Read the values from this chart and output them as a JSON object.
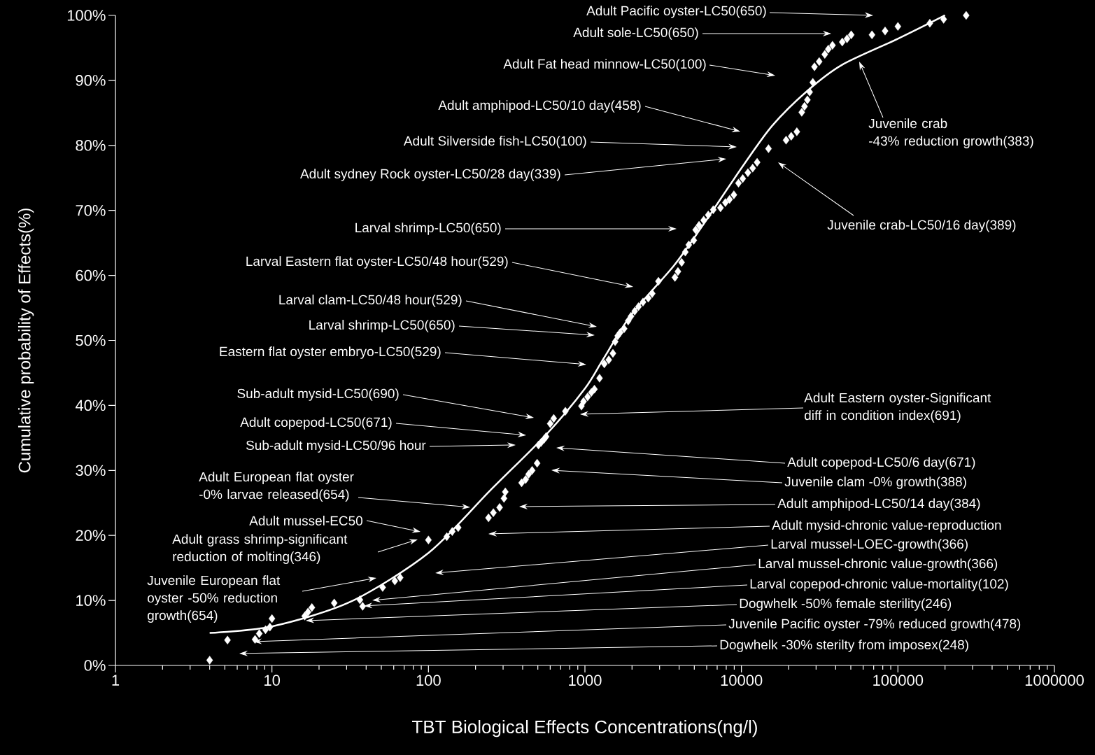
{
  "chart_data": {
    "type": "scatter",
    "xlabel": "TBT Biological Effects Concentrations(ng/l)",
    "ylabel": "Cumulative probability of Effects(%)",
    "log": "x",
    "grid": false,
    "xlim": [
      1,
      1000000
    ],
    "ylim": [
      0,
      100
    ],
    "xticks": [
      1,
      10,
      100,
      1000,
      10000,
      100000,
      1000000
    ],
    "yticks": [
      {
        "value": 0,
        "label": "0%"
      },
      {
        "value": 10,
        "label": "10%"
      },
      {
        "value": 20,
        "label": "20%"
      },
      {
        "value": 30,
        "label": "30%"
      },
      {
        "value": 40,
        "label": "40%"
      },
      {
        "value": 50,
        "label": "50%"
      },
      {
        "value": 60,
        "label": "60%"
      },
      {
        "value": 70,
        "label": "70%"
      },
      {
        "value": 80,
        "label": "80%"
      },
      {
        "value": 90,
        "label": "90%"
      },
      {
        "value": 100,
        "label": "100%"
      }
    ],
    "series": [
      {
        "type": "scatter",
        "color": "#ffffff",
        "marker": "diamond",
        "x": [
          4,
          5.2,
          7.8,
          8.3,
          9.1,
          9.7,
          10,
          16.2,
          17,
          18,
          25,
          36.5,
          38,
          51,
          61,
          66,
          100,
          131,
          142,
          155,
          242,
          260,
          285,
          304,
          310,
          394,
          418,
          437,
          460,
          495,
          505,
          525,
          548,
          565,
          600,
          632,
          750,
          950,
          980,
          1040,
          1100,
          1150,
          1240,
          1330,
          1420,
          1510,
          1560,
          1620,
          1680,
          1780,
          1890,
          1970,
          2080,
          2200,
          2350,
          2540,
          2690,
          2950,
          3760,
          3930,
          4150,
          4380,
          4610,
          4960,
          5100,
          5360,
          5740,
          6140,
          6610,
          7350,
          7900,
          8400,
          8950,
          9580,
          10200,
          11000,
          11800,
          12600,
          14900,
          19300,
          20800,
          22600,
          24300,
          25300,
          26400,
          27300,
          28600,
          29300,
          31400,
          34100,
          35900,
          38200,
          44100,
          47300,
          50300,
          68300,
          82800,
          100000,
          160000,
          196000,
          273000
        ],
        "values": [
          0.8,
          3.9,
          4,
          4.9,
          5.5,
          5.9,
          7.2,
          7.6,
          8.2,
          8.9,
          9.6,
          10.1,
          9.1,
          12,
          13,
          13.5,
          19.3,
          19.8,
          20.6,
          21.2,
          22.7,
          23.5,
          24.3,
          25.7,
          26.7,
          28.1,
          28.6,
          29.4,
          30,
          31.1,
          33.9,
          34.3,
          34.8,
          35.2,
          37.2,
          38,
          39.1,
          39.9,
          40.6,
          41.3,
          42,
          42.5,
          44.2,
          46.4,
          47,
          48,
          49.8,
          50.7,
          51.2,
          51.8,
          53,
          53.7,
          54.5,
          55.2,
          55.9,
          56.5,
          57.2,
          59.1,
          59.7,
          60.6,
          62,
          63.6,
          64.7,
          65.4,
          67,
          67.7,
          68.5,
          69.3,
          70.1,
          70.4,
          71.2,
          71.7,
          72.4,
          74.2,
          74.9,
          75.8,
          76.5,
          77.4,
          79.5,
          80.8,
          81.4,
          82.1,
          85.1,
          86,
          87,
          88.2,
          89.7,
          92.1,
          92.9,
          94,
          94.8,
          95.4,
          95.9,
          96.4,
          97,
          97,
          97.6,
          98.3,
          98.8,
          99.4,
          100
        ]
      },
      {
        "type": "line",
        "color": "#ffffff",
        "marker": "none",
        "x": [
          4,
          10,
          31.8,
          100,
          250,
          570,
          1000,
          1300,
          1970,
          3700,
          5550,
          10000,
          15700,
          26400,
          44000,
          100000,
          200000
        ],
        "values": [
          5,
          6,
          9.8,
          17.3,
          27,
          35.6,
          42.6,
          47,
          53.9,
          61.5,
          67.4,
          76.5,
          83,
          88.4,
          92.4,
          96.4,
          100
        ]
      }
    ],
    "annotations": [
      "Adult Pacific oyster-LC50(650)",
      "Adult sole-LC50(650)",
      "Adult Fat head minnow-LC50(100)",
      "Adult amphipod-LC50/10 day(458)",
      "Adult Silverside fish-LC50(100)",
      "Adult sydney Rock oyster-LC50/28 day(339)",
      "Larval shrimp-LC50(650)",
      "Larval Eastern flat oyster-LC50/48 hour(529)",
      "Larval clam-LC50/48 hour(529)",
      "Larval shrimp-LC50(650)",
      "Eastern flat oyster embryo-LC50(529)",
      "Sub-adult mysid-LC50(690)",
      "Adult copepod-LC50(671)",
      "Sub-adult mysid-LC50/96 hour",
      "Adult European flat oyster\n-0% larvae released(654)",
      "Adult mussel-EC50",
      "Adult grass shrimp-significant\nreduction of molting(346)",
      "Juvenile European flat\noyster -50% reduction\ngrowth(654)",
      "Juvenile crab\n-43% reduction growth(383)",
      "Juvenile crab-LC50/16 day(389)",
      "Adult Eastern oyster-Significant\ndiff in condition index(691)",
      "Adult copepod-LC50/6 day(671)",
      "Juvenile clam -0% growth(388)",
      "Adult amphipod-LC50/14 day(384)",
      "Adult mysid-chronic value-reproduction",
      "Larval mussel-LOEC-growth(366)",
      "Larval mussel-chronic value-growth(366)",
      "Larval copepod-chronic value-mortality(102)",
      "Dogwhelk -50% female sterility(246)",
      "Juvenile Pacific oyster -79% reduced growth(478)",
      "Dogwhelk -30% sterilty from imposex(248)"
    ]
  }
}
